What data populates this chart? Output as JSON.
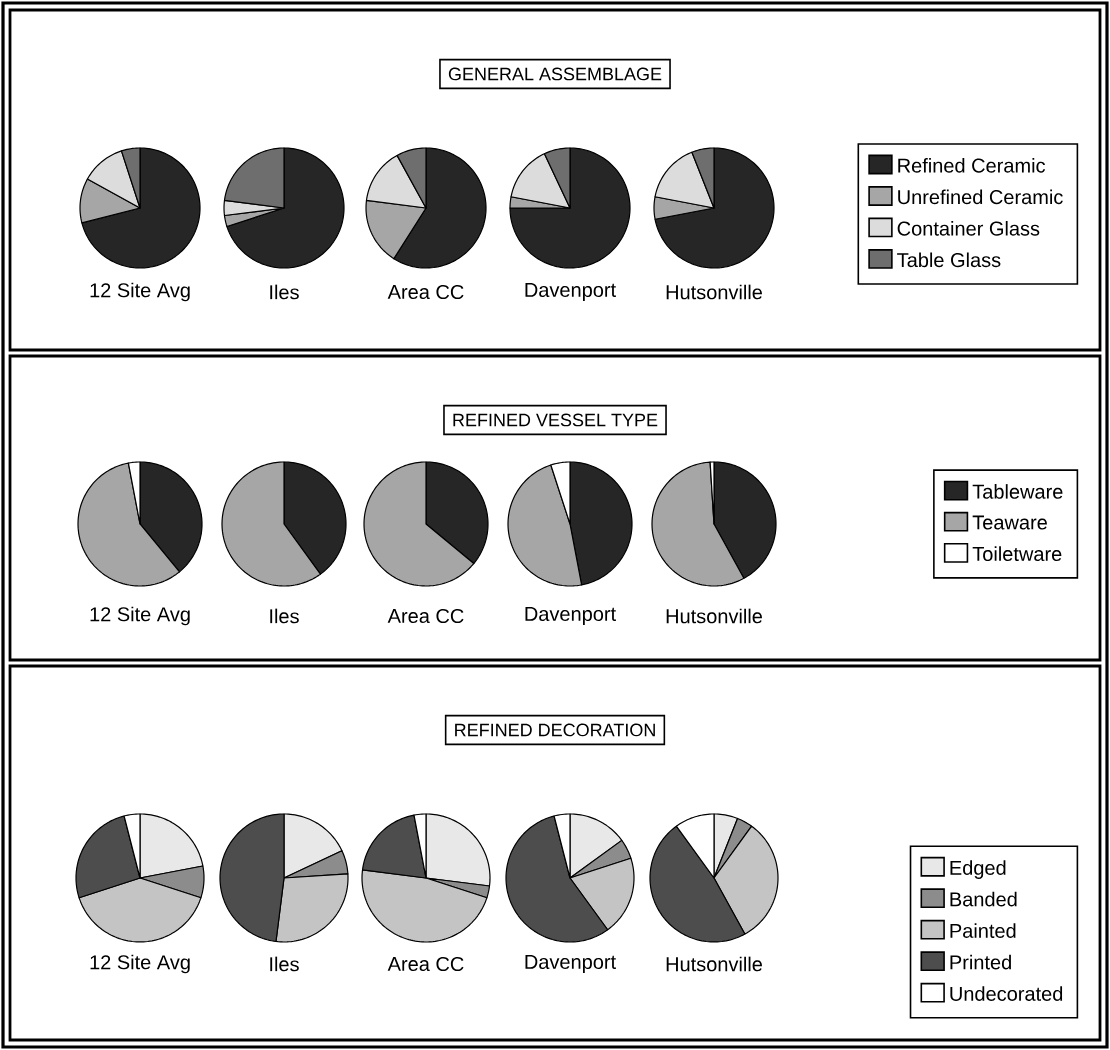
{
  "chart_data": [
    {
      "type": "pie",
      "title": "GENERAL ASSEMBLAGE",
      "categories": [
        "Refined Ceramic",
        "Unrefined Ceramic",
        "Container Glass",
        "Table Glass"
      ],
      "colors": [
        "#262626",
        "#a6a6a6",
        "#dcdcdc",
        "#6e6e6e"
      ],
      "legend": "right",
      "series": [
        {
          "name": "12 Site Avg",
          "values": [
            71,
            12,
            12,
            5
          ]
        },
        {
          "name": "Iles",
          "values": [
            70,
            3,
            4,
            23
          ]
        },
        {
          "name": "Area CC",
          "values": [
            59,
            18,
            15,
            8
          ]
        },
        {
          "name": "Davenport",
          "values": [
            75,
            3,
            15,
            7
          ]
        },
        {
          "name": "Hutsonville",
          "values": [
            72,
            6,
            16,
            6
          ]
        }
      ]
    },
    {
      "type": "pie",
      "title": "REFINED VESSEL TYPE",
      "categories": [
        "Tableware",
        "Teaware",
        "Toiletware"
      ],
      "colors": [
        "#262626",
        "#a6a6a6",
        "#ffffff"
      ],
      "legend": "right",
      "series": [
        {
          "name": "12 Site Avg",
          "values": [
            39,
            58,
            3
          ]
        },
        {
          "name": "Iles",
          "values": [
            40,
            60,
            0
          ]
        },
        {
          "name": "Area CC",
          "values": [
            36,
            64,
            0
          ]
        },
        {
          "name": "Davenport",
          "values": [
            47,
            48,
            5
          ]
        },
        {
          "name": "Hutsonville",
          "values": [
            42,
            57,
            1
          ]
        }
      ]
    },
    {
      "type": "pie",
      "title": "REFINED DECORATION",
      "categories": [
        "Edged",
        "Banded",
        "Painted",
        "Printed",
        "Undecorated"
      ],
      "colors": [
        "#e8e8e8",
        "#8c8c8c",
        "#c4c4c4",
        "#4d4d4d",
        "#ffffff"
      ],
      "legend": "right",
      "series": [
        {
          "name": "12 Site Avg",
          "values": [
            22,
            8,
            40,
            26,
            4
          ]
        },
        {
          "name": "Iles",
          "values": [
            18,
            6,
            28,
            48,
            0
          ]
        },
        {
          "name": "Area CC",
          "values": [
            27,
            3,
            47,
            20,
            3
          ]
        },
        {
          "name": "Davenport",
          "values": [
            15,
            5,
            20,
            56,
            4
          ]
        },
        {
          "name": "Hutsonville",
          "values": [
            6,
            4,
            32,
            48,
            10
          ]
        }
      ]
    }
  ]
}
